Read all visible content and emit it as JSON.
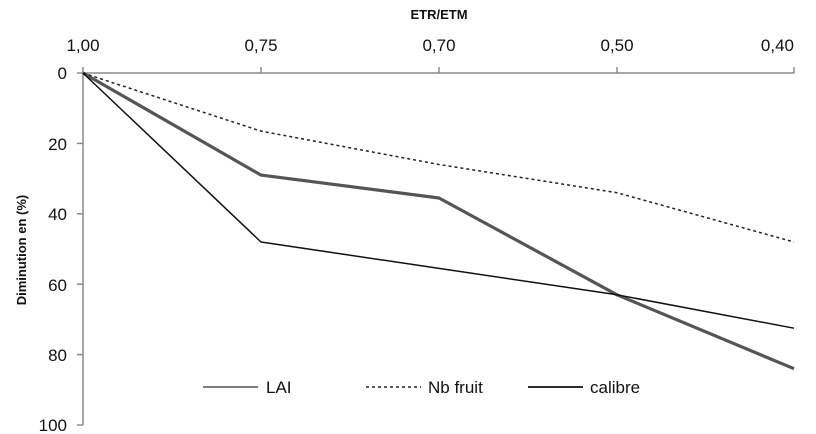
{
  "chart_data": {
    "type": "line",
    "xlabel": "ETR/ETM",
    "ylabel": "Diminution en (%)",
    "categories": [
      "1,00",
      "0,75",
      "0,70",
      "0,50",
      "0,40"
    ],
    "yticks": [
      "0",
      "20",
      "40",
      "60",
      "80",
      "100"
    ],
    "ylim": [
      0,
      100
    ],
    "y_inverted": true,
    "x_axis_position": "top",
    "grid": false,
    "legend_position": "bottom-center",
    "series": [
      {
        "name": "LAI",
        "values": [
          0,
          29,
          35.5,
          63,
          84
        ],
        "color": "#555555",
        "dash": "solid",
        "weight": "thick"
      },
      {
        "name": "Nb fruit",
        "values": [
          0,
          16.5,
          26,
          34,
          48
        ],
        "color": "#222222",
        "dash": "dotted",
        "weight": "normal"
      },
      {
        "name": "calibre",
        "values": [
          0,
          48,
          55.5,
          63,
          72.5
        ],
        "color": "#111111",
        "dash": "solid",
        "weight": "normal"
      }
    ]
  }
}
